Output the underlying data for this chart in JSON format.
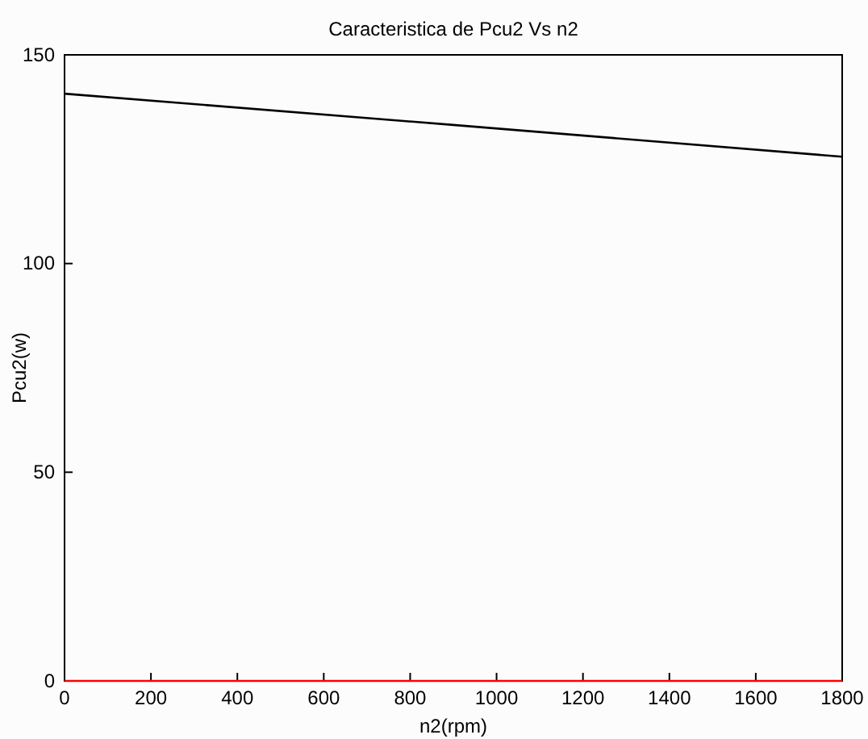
{
  "chart_data": {
    "type": "line",
    "title": "Caracteristica de Pcu2 Vs n2",
    "xlabel": "n2(rpm)",
    "ylabel": "Pcu2(w)",
    "xlim": [
      0,
      1800
    ],
    "xticks": [
      0,
      200,
      400,
      600,
      800,
      1000,
      1200,
      1400,
      1600,
      1800
    ],
    "ylim": [
      0,
      150
    ],
    "yticks": [
      0,
      50,
      100,
      150
    ],
    "marker": "none",
    "line_style": "solid",
    "series": [
      {
        "color": "#000000",
        "x": [
          0,
          900,
          1800
        ],
        "values": [
          140.7,
          133.2,
          125.6
        ]
      },
      {
        "color": "#ff0000",
        "x": [
          0,
          1800
        ],
        "values": [
          0,
          0
        ]
      }
    ]
  }
}
